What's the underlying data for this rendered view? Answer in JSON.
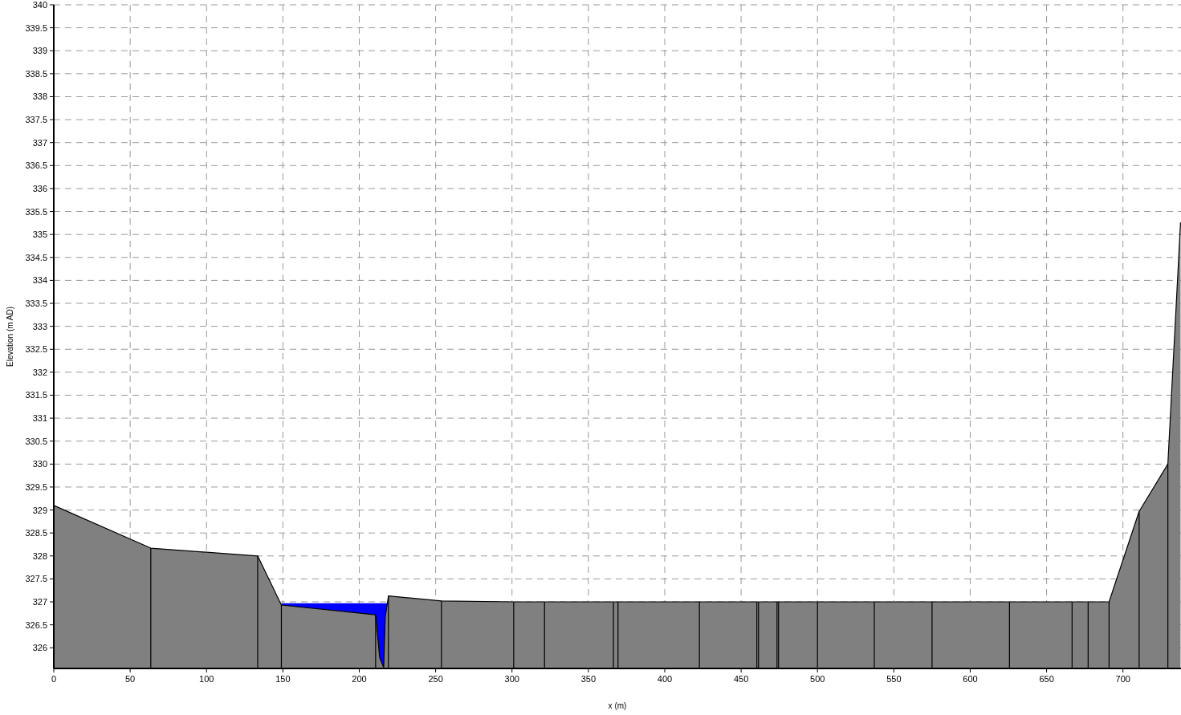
{
  "chart_data": {
    "type": "area",
    "xlabel": "x (m)",
    "ylabel": "Elevation (m AD)",
    "xlim": [
      0,
      738
    ],
    "ylim": [
      325.55,
      340
    ],
    "xticks": [
      0,
      50,
      100,
      150,
      200,
      250,
      300,
      350,
      400,
      450,
      500,
      550,
      600,
      650,
      700
    ],
    "yticks": [
      326,
      326.5,
      327,
      327.5,
      328,
      328.5,
      329,
      329.5,
      330,
      330.5,
      331,
      331.5,
      332,
      332.5,
      333,
      333.5,
      334,
      334.5,
      335,
      335.5,
      336,
      336.5,
      337,
      337.5,
      338,
      338.5,
      339,
      339.5,
      340
    ],
    "grid": true,
    "line_style": "dashed",
    "ref_lines": [
      {
        "axis": "x",
        "value": 63.5,
        "color": "#000000"
      },
      {
        "axis": "x",
        "value": 133.5,
        "color": "#000000"
      },
      {
        "axis": "x",
        "value": 149,
        "color": "#000000"
      },
      {
        "axis": "x",
        "value": 210.7,
        "color": "#000000"
      },
      {
        "axis": "x",
        "value": 219.1,
        "color": "#000000"
      },
      {
        "axis": "x",
        "value": 253.8,
        "color": "#000000"
      },
      {
        "axis": "x",
        "value": 301.1,
        "color": "#000000"
      },
      {
        "axis": "x",
        "value": 321.3,
        "color": "#000000"
      },
      {
        "axis": "x",
        "value": 366.4,
        "color": "#000000"
      },
      {
        "axis": "x",
        "value": 369.4,
        "color": "#000000"
      },
      {
        "axis": "x",
        "value": 422.7,
        "color": "#000000"
      },
      {
        "axis": "x",
        "value": 460.3,
        "color": "#000000"
      },
      {
        "axis": "x",
        "value": 461.4,
        "color": "#000000"
      },
      {
        "axis": "x",
        "value": 473.5,
        "color": "#000000"
      },
      {
        "axis": "x",
        "value": 474.5,
        "color": "#000000"
      },
      {
        "axis": "x",
        "value": 500,
        "color": "#000000"
      },
      {
        "axis": "x",
        "value": 537.2,
        "color": "#000000"
      },
      {
        "axis": "x",
        "value": 575,
        "color": "#000000"
      },
      {
        "axis": "x",
        "value": 625.7,
        "color": "#000000"
      },
      {
        "axis": "x",
        "value": 666.7,
        "color": "#000000"
      },
      {
        "axis": "x",
        "value": 677.2,
        "color": "#000000"
      },
      {
        "axis": "x",
        "value": 690.9,
        "color": "#000000"
      },
      {
        "axis": "x",
        "value": 710.6,
        "color": "#000000"
      },
      {
        "axis": "x",
        "value": 729.4,
        "color": "#000000"
      }
    ],
    "series": [
      {
        "color": "#0000ff",
        "x": [
          149,
          210.7,
          213.4,
          216,
          217,
          219.1
        ],
        "values": [
          326.97,
          326.97,
          326.97,
          326.97,
          326.97,
          326.97
        ]
      },
      {
        "color": "#808080",
        "x": [
          0,
          63.5,
          133.5,
          149,
          210.7,
          213.4,
          216,
          217,
          219.1,
          253.8,
          301.1,
          321.3,
          366.4,
          369.4,
          422.7,
          460.3,
          461.4,
          473.5,
          474.5,
          500,
          537.2,
          575,
          625.7,
          666.7,
          677.2,
          690.9,
          710.6,
          729.4,
          737.7
        ],
        "values": [
          329.1,
          328.17,
          328.0,
          326.93,
          326.72,
          325.78,
          325.57,
          326.67,
          327.13,
          327.02,
          327.0,
          327.0,
          327.0,
          327.0,
          327.0,
          327.0,
          327.0,
          327.0,
          327.0,
          327.0,
          327.0,
          327.0,
          327.0,
          327.0,
          327.0,
          327.0,
          328.97,
          330.0,
          335.26
        ]
      }
    ]
  }
}
